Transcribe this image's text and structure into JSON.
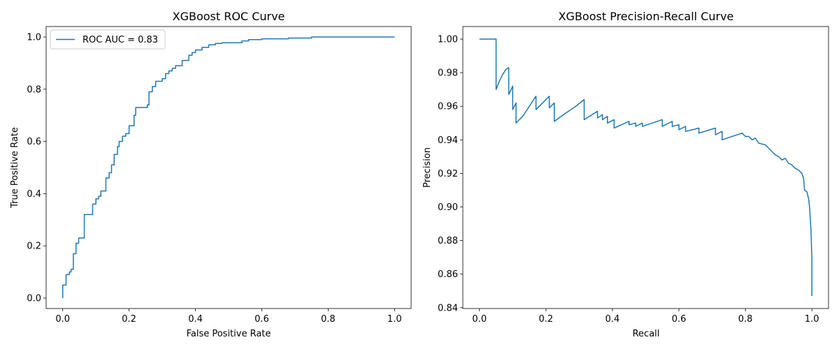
{
  "chart_data": [
    {
      "type": "line",
      "title": "XGBoost ROC Curve",
      "xlabel": "False Positive Rate",
      "ylabel": "True Positive Rate",
      "xlim": [
        -0.05,
        1.05
      ],
      "ylim": [
        -0.04,
        1.04
      ],
      "xticks": [
        0.0,
        0.2,
        0.4,
        0.6,
        0.8,
        1.0
      ],
      "xtick_labels": [
        "0.0",
        "0.2",
        "0.4",
        "0.6",
        "0.8",
        "1.0"
      ],
      "yticks": [
        0.0,
        0.2,
        0.4,
        0.6,
        0.8,
        1.0
      ],
      "ytick_labels": [
        "0.0",
        "0.2",
        "0.4",
        "0.6",
        "0.8",
        "1.0"
      ],
      "grid": false,
      "legend": {
        "position": "upper-left",
        "entries": [
          "ROC AUC = 0.83"
        ]
      },
      "color": "#1f77b4",
      "series": [
        {
          "name": "ROC AUC = 0.83",
          "step": true,
          "points": [
            [
              0.0,
              0.0
            ],
            [
              0.0,
              0.05
            ],
            [
              0.01,
              0.05
            ],
            [
              0.01,
              0.09
            ],
            [
              0.02,
              0.09
            ],
            [
              0.02,
              0.1
            ],
            [
              0.025,
              0.1
            ],
            [
              0.025,
              0.11
            ],
            [
              0.032,
              0.11
            ],
            [
              0.032,
              0.17
            ],
            [
              0.04,
              0.17
            ],
            [
              0.04,
              0.21
            ],
            [
              0.048,
              0.21
            ],
            [
              0.048,
              0.23
            ],
            [
              0.065,
              0.23
            ],
            [
              0.065,
              0.32
            ],
            [
              0.09,
              0.32
            ],
            [
              0.09,
              0.36
            ],
            [
              0.1,
              0.36
            ],
            [
              0.1,
              0.38
            ],
            [
              0.108,
              0.38
            ],
            [
              0.108,
              0.39
            ],
            [
              0.115,
              0.39
            ],
            [
              0.115,
              0.41
            ],
            [
              0.13,
              0.41
            ],
            [
              0.13,
              0.46
            ],
            [
              0.14,
              0.46
            ],
            [
              0.14,
              0.48
            ],
            [
              0.147,
              0.48
            ],
            [
              0.147,
              0.51
            ],
            [
              0.155,
              0.51
            ],
            [
              0.155,
              0.55
            ],
            [
              0.165,
              0.55
            ],
            [
              0.165,
              0.58
            ],
            [
              0.17,
              0.58
            ],
            [
              0.17,
              0.6
            ],
            [
              0.18,
              0.6
            ],
            [
              0.18,
              0.62
            ],
            [
              0.19,
              0.62
            ],
            [
              0.19,
              0.63
            ],
            [
              0.2,
              0.63
            ],
            [
              0.2,
              0.66
            ],
            [
              0.215,
              0.66
            ],
            [
              0.215,
              0.7
            ],
            [
              0.22,
              0.7
            ],
            [
              0.22,
              0.73
            ],
            [
              0.255,
              0.73
            ],
            [
              0.255,
              0.74
            ],
            [
              0.26,
              0.74
            ],
            [
              0.26,
              0.79
            ],
            [
              0.27,
              0.79
            ],
            [
              0.27,
              0.81
            ],
            [
              0.28,
              0.81
            ],
            [
              0.28,
              0.83
            ],
            [
              0.3,
              0.83
            ],
            [
              0.3,
              0.84
            ],
            [
              0.31,
              0.84
            ],
            [
              0.31,
              0.86
            ],
            [
              0.32,
              0.86
            ],
            [
              0.32,
              0.87
            ],
            [
              0.33,
              0.87
            ],
            [
              0.33,
              0.88
            ],
            [
              0.34,
              0.88
            ],
            [
              0.34,
              0.89
            ],
            [
              0.36,
              0.89
            ],
            [
              0.36,
              0.91
            ],
            [
              0.38,
              0.91
            ],
            [
              0.38,
              0.93
            ],
            [
              0.39,
              0.93
            ],
            [
              0.39,
              0.94
            ],
            [
              0.4,
              0.94
            ],
            [
              0.4,
              0.95
            ],
            [
              0.42,
              0.95
            ],
            [
              0.42,
              0.96
            ],
            [
              0.44,
              0.96
            ],
            [
              0.44,
              0.97
            ],
            [
              0.46,
              0.97
            ],
            [
              0.46,
              0.975
            ],
            [
              0.48,
              0.975
            ],
            [
              0.48,
              0.978
            ],
            [
              0.54,
              0.978
            ],
            [
              0.54,
              0.985
            ],
            [
              0.56,
              0.985
            ],
            [
              0.56,
              0.99
            ],
            [
              0.6,
              0.99
            ],
            [
              0.6,
              0.993
            ],
            [
              0.68,
              0.993
            ],
            [
              0.68,
              0.996
            ],
            [
              0.75,
              0.996
            ],
            [
              0.75,
              1.0
            ],
            [
              1.0,
              1.0
            ]
          ]
        }
      ]
    },
    {
      "type": "line",
      "title": "XGBoost Precision-Recall Curve",
      "xlabel": "Recall",
      "ylabel": "Precision",
      "xlim": [
        -0.05,
        1.05
      ],
      "ylim": [
        0.8395,
        1.0075
      ],
      "xticks": [
        0.0,
        0.2,
        0.4,
        0.6,
        0.8,
        1.0
      ],
      "xtick_labels": [
        "0.0",
        "0.2",
        "0.4",
        "0.6",
        "0.8",
        "1.0"
      ],
      "yticks": [
        0.84,
        0.86,
        0.88,
        0.9,
        0.92,
        0.94,
        0.96,
        0.98,
        1.0
      ],
      "ytick_labels": [
        "0.84",
        "0.86",
        "0.88",
        "0.90",
        "0.92",
        "0.94",
        "0.96",
        "0.98",
        "1.00"
      ],
      "grid": false,
      "color": "#1f77b4",
      "series": [
        {
          "points": [
            [
              0.0,
              1.0
            ],
            [
              0.05,
              1.0
            ],
            [
              0.05,
              0.97
            ],
            [
              0.06,
              0.975
            ],
            [
              0.07,
              0.979
            ],
            [
              0.08,
              0.982
            ],
            [
              0.088,
              0.983
            ],
            [
              0.088,
              0.967
            ],
            [
              0.1,
              0.972
            ],
            [
              0.1,
              0.958
            ],
            [
              0.11,
              0.962
            ],
            [
              0.11,
              0.95
            ],
            [
              0.13,
              0.954
            ],
            [
              0.15,
              0.96
            ],
            [
              0.17,
              0.966
            ],
            [
              0.17,
              0.958
            ],
            [
              0.21,
              0.966
            ],
            [
              0.21,
              0.959
            ],
            [
              0.225,
              0.962
            ],
            [
              0.225,
              0.951
            ],
            [
              0.26,
              0.956
            ],
            [
              0.29,
              0.96
            ],
            [
              0.315,
              0.964
            ],
            [
              0.315,
              0.952
            ],
            [
              0.355,
              0.957
            ],
            [
              0.355,
              0.953
            ],
            [
              0.37,
              0.955
            ],
            [
              0.37,
              0.952
            ],
            [
              0.385,
              0.954
            ],
            [
              0.385,
              0.95
            ],
            [
              0.405,
              0.952
            ],
            [
              0.405,
              0.947
            ],
            [
              0.45,
              0.951
            ],
            [
              0.45,
              0.949
            ],
            [
              0.47,
              0.95
            ],
            [
              0.47,
              0.948
            ],
            [
              0.49,
              0.95
            ],
            [
              0.49,
              0.948
            ],
            [
              0.55,
              0.952
            ],
            [
              0.55,
              0.948
            ],
            [
              0.58,
              0.951
            ],
            [
              0.58,
              0.948
            ],
            [
              0.6,
              0.949
            ],
            [
              0.6,
              0.946
            ],
            [
              0.62,
              0.948
            ],
            [
              0.62,
              0.945
            ],
            [
              0.66,
              0.947
            ],
            [
              0.66,
              0.944
            ],
            [
              0.71,
              0.947
            ],
            [
              0.71,
              0.943
            ],
            [
              0.73,
              0.945
            ],
            [
              0.73,
              0.94
            ],
            [
              0.79,
              0.944
            ],
            [
              0.8,
              0.942
            ],
            [
              0.81,
              0.942
            ],
            [
              0.82,
              0.94
            ],
            [
              0.83,
              0.941
            ],
            [
              0.84,
              0.938
            ],
            [
              0.86,
              0.937
            ],
            [
              0.87,
              0.935
            ],
            [
              0.88,
              0.933
            ],
            [
              0.89,
              0.931
            ],
            [
              0.9,
              0.93
            ],
            [
              0.91,
              0.928
            ],
            [
              0.92,
              0.929
            ],
            [
              0.93,
              0.926
            ],
            [
              0.94,
              0.925
            ],
            [
              0.95,
              0.923
            ],
            [
              0.96,
              0.922
            ],
            [
              0.97,
              0.92
            ],
            [
              0.975,
              0.917
            ],
            [
              0.978,
              0.91
            ],
            [
              0.985,
              0.909
            ],
            [
              0.99,
              0.905
            ],
            [
              0.993,
              0.9
            ],
            [
              0.995,
              0.893
            ],
            [
              0.997,
              0.887
            ],
            [
              0.998,
              0.882
            ],
            [
              0.999,
              0.875
            ],
            [
              1.0,
              0.87
            ],
            [
              1.0,
              0.847
            ]
          ]
        }
      ]
    }
  ]
}
